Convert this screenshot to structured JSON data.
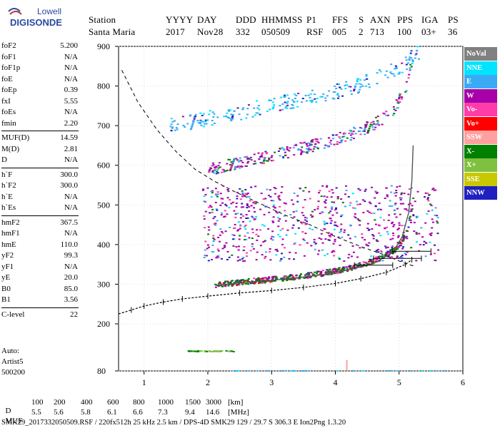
{
  "logo": {
    "line1": "Lowell",
    "line2": "DIGISONDE"
  },
  "header": {
    "labels": [
      "Station",
      "YYYY",
      "DAY",
      "DDD",
      "HHMMSS",
      "P1",
      "FFS",
      "S",
      "AXN",
      "PPS",
      "IGA",
      "PS"
    ],
    "values": [
      "Santa Maria",
      "2017",
      "Nov28",
      "332",
      "050509",
      "RSF",
      "005",
      "2",
      "713",
      "100",
      "03+",
      "36"
    ]
  },
  "params": [
    {
      "label": "foF2",
      "value": "5.200"
    },
    {
      "label": "foF1",
      "value": "N/A"
    },
    {
      "label": "foF1p",
      "value": "N/A"
    },
    {
      "label": "foE",
      "value": "N/A"
    },
    {
      "label": "foEp",
      "value": "0.39"
    },
    {
      "label": "fxI",
      "value": "5.55"
    },
    {
      "label": "foEs",
      "value": "N/A"
    },
    {
      "label": "fmin",
      "value": "2.20"
    },
    {
      "label": "MUF(D)",
      "value": "14.59"
    },
    {
      "label": "M(D)",
      "value": "2.81"
    },
    {
      "label": "D",
      "value": "N/A"
    },
    {
      "label": "h`F",
      "value": "300.0"
    },
    {
      "label": "h`F2",
      "value": "300.0"
    },
    {
      "label": "h`E",
      "value": "N/A"
    },
    {
      "label": "h`Es",
      "value": "N/A"
    },
    {
      "label": "hmF2",
      "value": "367.5"
    },
    {
      "label": "hmF1",
      "value": "N/A"
    },
    {
      "label": "hmE",
      "value": "110.0"
    },
    {
      "label": "yF2",
      "value": "99.3"
    },
    {
      "label": "yF1",
      "value": "N/A"
    },
    {
      "label": "yE",
      "value": "20.0"
    },
    {
      "label": "B0",
      "value": "85.0"
    },
    {
      "label": "B1",
      "value": "3.56"
    },
    {
      "label": "C-level",
      "value": "22"
    }
  ],
  "auto": {
    "line1": "Auto:",
    "line2": "Artist5",
    "line3": "500200"
  },
  "legend": [
    {
      "label": "NoVal",
      "color": "#808080"
    },
    {
      "label": "NNE",
      "color": "#00e5ff"
    },
    {
      "label": "E",
      "color": "#3aaaf5"
    },
    {
      "label": "W",
      "color": "#a800a8"
    },
    {
      "label": "Vo-",
      "color": "#ff3caa"
    },
    {
      "label": "Vo+",
      "color": "#ff0000"
    },
    {
      "label": "SSW",
      "color": "#ffa0a0"
    },
    {
      "label": "X-",
      "color": "#008000"
    },
    {
      "label": "X+",
      "color": "#80c040"
    },
    {
      "label": "SSE",
      "color": "#c8c800"
    },
    {
      "label": "NNW",
      "color": "#2020c0"
    }
  ],
  "chart_data": {
    "type": "scatter",
    "xlim": [
      0.6,
      6.0
    ],
    "ylim": [
      80,
      900
    ],
    "xticks": [
      1,
      2,
      3,
      4,
      5,
      6
    ],
    "yticks": [
      80,
      200,
      300,
      400,
      500,
      600,
      700,
      800,
      900
    ],
    "grid": true,
    "virtual_height_trace": [
      [
        0.6,
        225
      ],
      [
        0.8,
        235
      ],
      [
        1.0,
        245
      ],
      [
        1.3,
        255
      ],
      [
        1.6,
        263
      ],
      [
        2.0,
        270
      ],
      [
        2.5,
        278
      ],
      [
        3.0,
        284
      ],
      [
        3.5,
        292
      ],
      [
        4.0,
        302
      ],
      [
        4.4,
        314
      ],
      [
        4.8,
        330
      ],
      [
        5.1,
        350
      ],
      [
        5.2,
        362
      ]
    ],
    "true_height_trace": [
      [
        2.2,
        298
      ],
      [
        2.6,
        305
      ],
      [
        3.0,
        310
      ],
      [
        3.4,
        316
      ],
      [
        3.8,
        324
      ],
      [
        4.2,
        336
      ],
      [
        4.6,
        352
      ],
      [
        4.9,
        380
      ],
      [
        5.05,
        420
      ],
      [
        5.15,
        480
      ],
      [
        5.2,
        560
      ],
      [
        5.22,
        650
      ]
    ],
    "muf_curve": [
      [
        0.65,
        840
      ],
      [
        0.9,
        760
      ],
      [
        1.2,
        690
      ],
      [
        1.5,
        635
      ],
      [
        1.8,
        590
      ],
      [
        2.1,
        560
      ],
      [
        2.4,
        535
      ],
      [
        2.8,
        505
      ],
      [
        3.2,
        475
      ],
      [
        3.6,
        450
      ],
      [
        4.0,
        420
      ],
      [
        4.4,
        395
      ],
      [
        4.8,
        372
      ],
      [
        5.1,
        352
      ],
      [
        5.25,
        345
      ]
    ],
    "error_bars": [
      [
        5.2,
        383,
        4.9,
        5.5
      ],
      [
        4.9,
        365,
        4.6,
        5.35
      ],
      [
        4.6,
        348,
        4.3,
        4.9
      ]
    ],
    "f2_trace": [
      [
        2.1,
        300
      ],
      [
        2.6,
        308
      ],
      [
        3.0,
        314
      ],
      [
        3.5,
        322
      ],
      [
        4.0,
        335
      ],
      [
        4.4,
        350
      ],
      [
        4.7,
        368
      ],
      [
        4.95,
        392
      ],
      [
        5.1,
        430
      ],
      [
        5.2,
        500
      ],
      [
        5.22,
        560
      ]
    ],
    "f2_2hop_trace": [
      [
        2.0,
        590
      ],
      [
        2.4,
        606
      ],
      [
        2.8,
        620
      ],
      [
        3.2,
        634
      ],
      [
        3.6,
        650
      ],
      [
        4.0,
        668
      ],
      [
        4.3,
        684
      ],
      [
        4.6,
        705
      ],
      [
        4.9,
        740
      ],
      [
        5.1,
        800
      ],
      [
        5.2,
        880
      ]
    ],
    "f2_3hop_trace": [
      [
        1.4,
        700
      ],
      [
        2.0,
        722
      ],
      [
        2.6,
        740
      ],
      [
        3.2,
        760
      ],
      [
        3.8,
        780
      ],
      [
        4.2,
        795
      ],
      [
        4.6,
        818
      ],
      [
        5.0,
        850
      ],
      [
        5.3,
        890
      ]
    ]
  },
  "footer": {
    "d_label": "D",
    "d_values": [
      "100",
      "200",
      "400",
      "600",
      "800",
      "1000",
      "1500",
      "3000",
      "[km]"
    ],
    "muf_label": "MUF",
    "muf_values": [
      "5.5",
      "5.6",
      "5.8",
      "6.1",
      "6.6",
      "7.3",
      "9.4",
      "14.6",
      "[MHz]"
    ],
    "info": "SMK29_2017332050509.RSF / 220fx512h 25 kHz 2.5 km / DPS-4D SMK29 129 / 29.7 S 306.3 E Ion2Png 1.3.20"
  }
}
